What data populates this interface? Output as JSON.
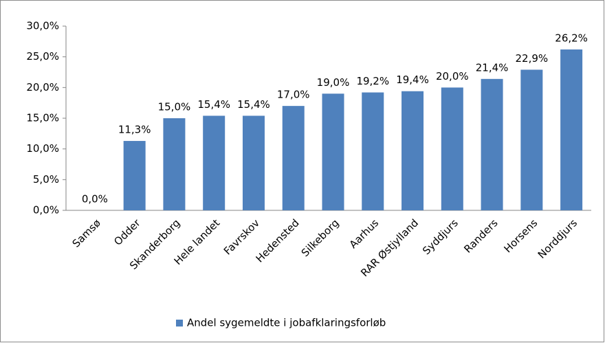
{
  "chart_data": {
    "type": "bar",
    "categories": [
      "Samsø",
      "Odder",
      "Skanderborg",
      "Hele landet",
      "Favrskov",
      "Hedensted",
      "Silkeborg",
      "Aarhus",
      "RAR Østjylland",
      "Syddjurs",
      "Randers",
      "Horsens",
      "Norddjurs"
    ],
    "series": [
      {
        "name": "Andel sygemeldte i jobafklaringsforløb",
        "color": "#4f81bd",
        "values": [
          0.0,
          11.3,
          15.0,
          15.4,
          15.4,
          17.0,
          19.0,
          19.2,
          19.4,
          20.0,
          21.4,
          22.9,
          26.2
        ],
        "value_labels": [
          "0,0%",
          "11,3%",
          "15,0%",
          "15,4%",
          "15,4%",
          "17,0%",
          "19,0%",
          "19,2%",
          "19,4%",
          "20,0%",
          "21,4%",
          "22,9%",
          "26,2%"
        ]
      }
    ],
    "ylim": [
      0,
      30
    ],
    "yticks": [
      {
        "value": 0,
        "label": "0,0%"
      },
      {
        "value": 5,
        "label": "5,0%"
      },
      {
        "value": 10,
        "label": "10,0%"
      },
      {
        "value": 15,
        "label": "15,0%"
      },
      {
        "value": 20,
        "label": "20,0%"
      },
      {
        "value": 25,
        "label": "25,0%"
      },
      {
        "value": 30,
        "label": "30,0%"
      }
    ],
    "legend": "bottom"
  }
}
